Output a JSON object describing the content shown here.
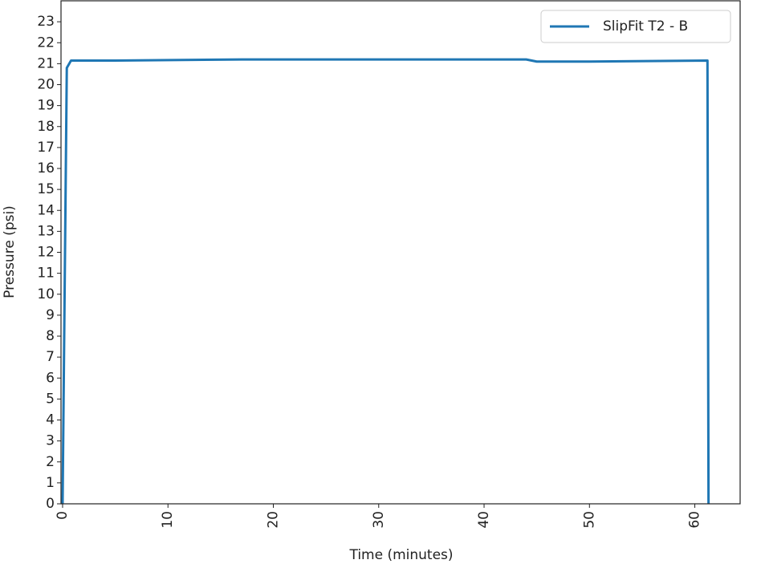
{
  "chart_data": {
    "type": "line",
    "xlabel": "Time (minutes)",
    "ylabel": "Pressure (psi)",
    "x": [
      0,
      0.4,
      0.8,
      5,
      17,
      30,
      44,
      45,
      50,
      61.2,
      61.3
    ],
    "series": [
      {
        "name": "SlipFit T2 - B",
        "color": "#1f77b4",
        "values": [
          0,
          20.8,
          21.15,
          21.15,
          21.2,
          21.2,
          21.2,
          21.1,
          21.1,
          21.15,
          0
        ]
      }
    ],
    "xlim": [
      -0.15,
      64.3
    ],
    "xticks": [
      0,
      10,
      20,
      30,
      40,
      50,
      60
    ],
    "ylim": [
      0,
      24
    ],
    "yticks": [
      0,
      1,
      2,
      3,
      4,
      5,
      6,
      7,
      8,
      9,
      10,
      11,
      12,
      13,
      14,
      15,
      16,
      17,
      18,
      19,
      20,
      21,
      22,
      23
    ],
    "legend": "upper right"
  }
}
